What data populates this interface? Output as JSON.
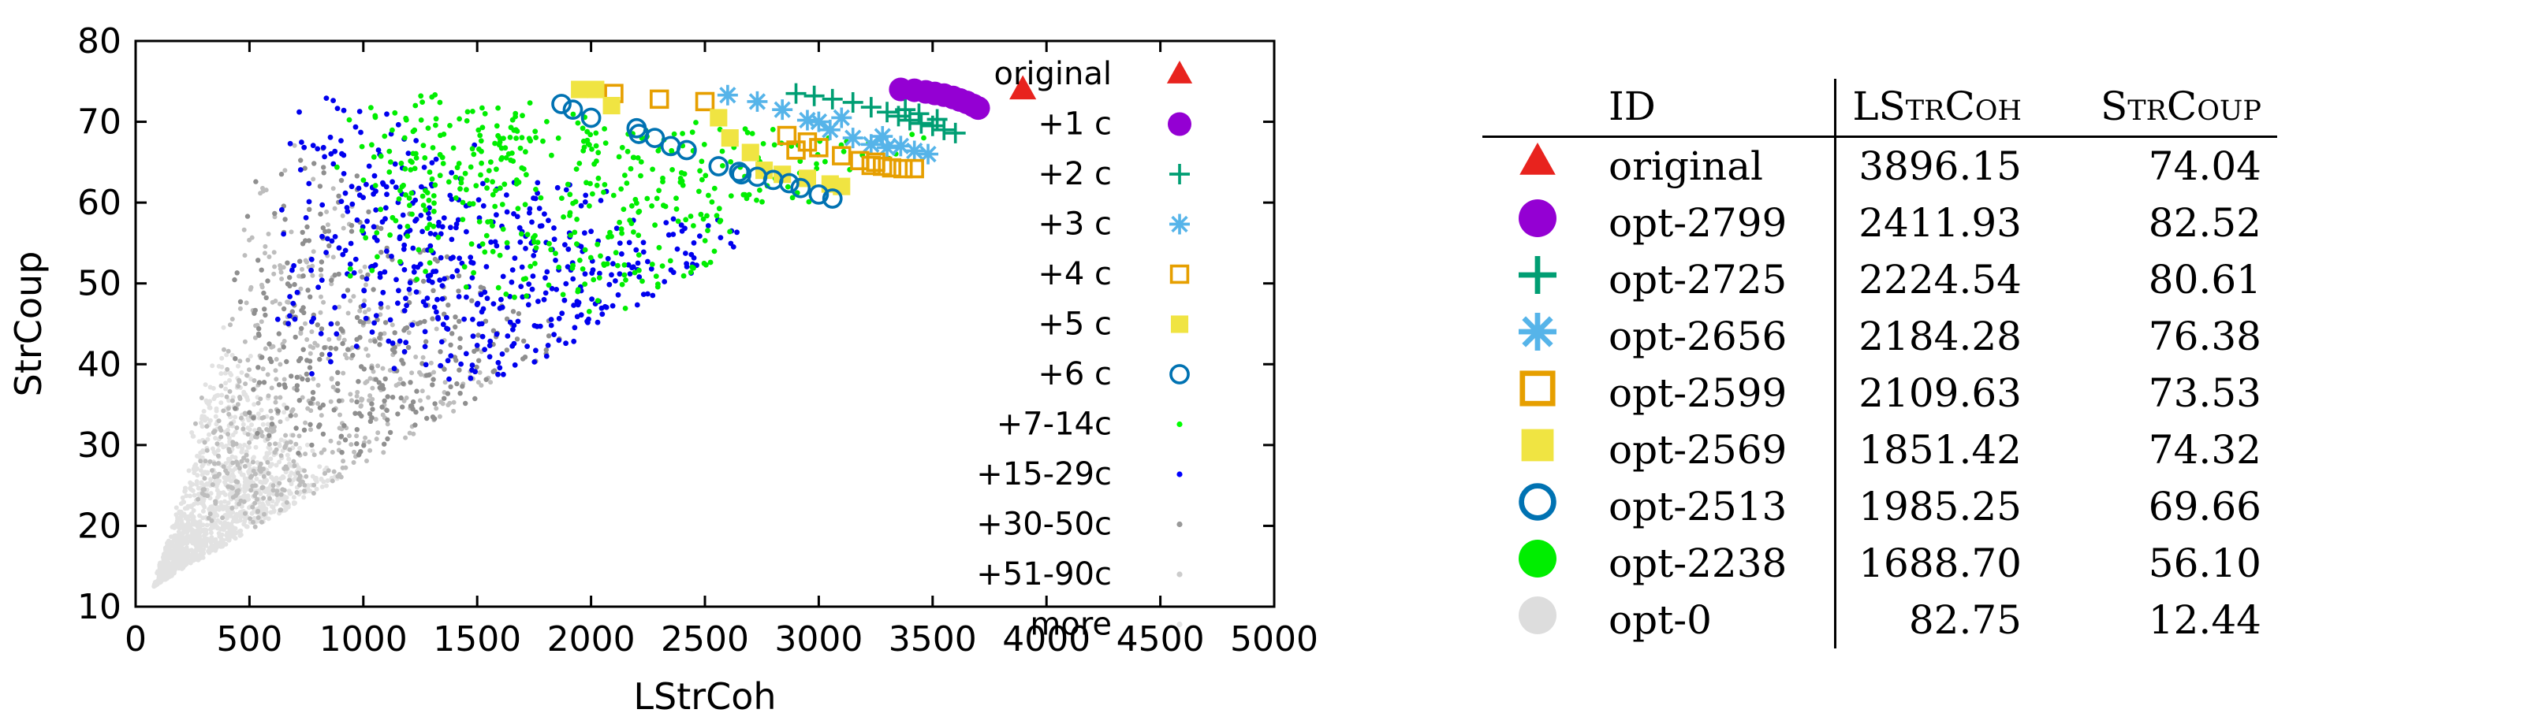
{
  "chart_data": {
    "type": "scatter",
    "xlabel": "LStrCoh",
    "ylabel": "StrCoup",
    "xlim": [
      0,
      5000
    ],
    "ylim": [
      10,
      80
    ],
    "xticks": [
      "0",
      "500",
      "1000",
      "1500",
      "2000",
      "2500",
      "3000",
      "3500",
      "4000",
      "4500",
      "5000"
    ],
    "yticks": [
      "10",
      "20",
      "30",
      "40",
      "50",
      "60",
      "70",
      "80"
    ],
    "grid": false,
    "legend_position": "top-right inside",
    "series": [
      {
        "name": "original",
        "marker": "triangle",
        "color": "#e8231e",
        "points": [
          [
            3896,
            74.0
          ]
        ]
      },
      {
        "name": "+1 c",
        "marker": "circle-filled",
        "color": "#9400d3",
        "points": [
          [
            3360,
            74.0
          ],
          [
            3420,
            73.9
          ],
          [
            3470,
            73.7
          ],
          [
            3510,
            73.5
          ],
          [
            3550,
            73.3
          ],
          [
            3590,
            73.0
          ],
          [
            3620,
            72.7
          ],
          [
            3650,
            72.4
          ],
          [
            3680,
            72.0
          ],
          [
            3700,
            71.7
          ]
        ]
      },
      {
        "name": "+2 c",
        "marker": "plus",
        "color": "#009e73",
        "points": [
          [
            2900,
            73.5
          ],
          [
            2980,
            73.2
          ],
          [
            3060,
            72.8
          ],
          [
            3150,
            72.4
          ],
          [
            3230,
            71.8
          ],
          [
            3300,
            71.2
          ],
          [
            3350,
            70.7
          ],
          [
            3400,
            70.2
          ],
          [
            3450,
            69.8
          ],
          [
            3500,
            69.5
          ],
          [
            3550,
            69.0
          ],
          [
            3600,
            68.6
          ],
          [
            3380,
            71.5
          ],
          [
            3440,
            71.0
          ],
          [
            3520,
            70.3
          ]
        ]
      },
      {
        "name": "+3 c",
        "marker": "asterisk",
        "color": "#56b4e9",
        "points": [
          [
            2600,
            73.3
          ],
          [
            2730,
            72.5
          ],
          [
            2840,
            71.5
          ],
          [
            2950,
            70.2
          ],
          [
            3050,
            69.0
          ],
          [
            3150,
            68.0
          ],
          [
            3230,
            67.2
          ],
          [
            3300,
            66.8
          ],
          [
            3360,
            67.0
          ],
          [
            3420,
            66.4
          ],
          [
            3480,
            66.0
          ],
          [
            3100,
            70.5
          ],
          [
            3000,
            70.0
          ],
          [
            3280,
            68.2
          ]
        ]
      },
      {
        "name": "+4 c",
        "marker": "square-open",
        "color": "#e69f00",
        "points": [
          [
            2100,
            73.5
          ],
          [
            2300,
            72.8
          ],
          [
            2500,
            72.5
          ],
          [
            2860,
            68.3
          ],
          [
            2950,
            67.5
          ],
          [
            3000,
            66.8
          ],
          [
            3100,
            65.8
          ],
          [
            3180,
            65.2
          ],
          [
            3230,
            64.6
          ],
          [
            3280,
            64.5
          ],
          [
            3320,
            64.3
          ],
          [
            3370,
            64.2
          ],
          [
            3420,
            64.2
          ],
          [
            2900,
            66.5
          ],
          [
            3250,
            65.0
          ]
        ]
      },
      {
        "name": "+5 c",
        "marker": "square-filled",
        "color": "#f0e442",
        "points": [
          [
            1950,
            74.0
          ],
          [
            2020,
            74.0
          ],
          [
            2090,
            72.0
          ],
          [
            2560,
            70.5
          ],
          [
            2610,
            68.0
          ],
          [
            2760,
            64.0
          ],
          [
            2840,
            63.5
          ],
          [
            2950,
            63.0
          ],
          [
            3050,
            62.3
          ],
          [
            3100,
            62.0
          ],
          [
            2700,
            66.2
          ]
        ]
      },
      {
        "name": "+6 c",
        "marker": "circle-open",
        "color": "#0072b2",
        "points": [
          [
            1870,
            72.2
          ],
          [
            1920,
            71.5
          ],
          [
            2000,
            70.5
          ],
          [
            2200,
            69.2
          ],
          [
            2280,
            68.0
          ],
          [
            2350,
            67.0
          ],
          [
            2420,
            66.5
          ],
          [
            2560,
            64.5
          ],
          [
            2660,
            63.5
          ],
          [
            2730,
            63.2
          ],
          [
            2800,
            62.8
          ],
          [
            2870,
            62.4
          ],
          [
            2920,
            61.8
          ],
          [
            3000,
            61.0
          ],
          [
            3060,
            60.5
          ],
          [
            2210,
            68.5
          ],
          [
            2650,
            63.8
          ]
        ]
      },
      {
        "name": "+7-14c",
        "marker": "dot",
        "color": "#00ff00",
        "points": []
      },
      {
        "name": "+15-29c",
        "marker": "dot",
        "color": "#0000ff",
        "points": []
      },
      {
        "name": "+30-50c",
        "marker": "dot",
        "color": "#999999",
        "points": []
      },
      {
        "name": "+51-90c",
        "marker": "dot",
        "color": "#cccccc",
        "points": []
      },
      {
        "name": "more",
        "marker": "dot",
        "color": "#e5e5e5",
        "points": []
      }
    ]
  },
  "table": {
    "headers": [
      "ID",
      "LStrCoh",
      "StrCoup"
    ],
    "rows": [
      {
        "symbol": "triangle",
        "color": "#e8231e",
        "id": "original",
        "lstrcoh": "3896.15",
        "strcoup": "74.04"
      },
      {
        "symbol": "circle-filled",
        "color": "#9400d3",
        "id": "opt-2799",
        "lstrcoh": "2411.93",
        "strcoup": "82.52"
      },
      {
        "symbol": "plus",
        "color": "#009e73",
        "id": "opt-2725",
        "lstrcoh": "2224.54",
        "strcoup": "80.61"
      },
      {
        "symbol": "asterisk",
        "color": "#56b4e9",
        "id": "opt-2656",
        "lstrcoh": "2184.28",
        "strcoup": "76.38"
      },
      {
        "symbol": "square-open",
        "color": "#e69f00",
        "id": "opt-2599",
        "lstrcoh": "2109.63",
        "strcoup": "73.53"
      },
      {
        "symbol": "square-filled",
        "color": "#f0e442",
        "id": "opt-2569",
        "lstrcoh": "1851.42",
        "strcoup": "74.32"
      },
      {
        "symbol": "circle-open",
        "color": "#0072b2",
        "id": "opt-2513",
        "lstrcoh": "1985.25",
        "strcoup": "69.66"
      },
      {
        "symbol": "circle-filled",
        "color": "#00ee00",
        "id": "opt-2238",
        "lstrcoh": "1688.70",
        "strcoup": "56.10"
      },
      {
        "symbol": "circle-filled",
        "color": "#dddddd",
        "id": "opt-0",
        "lstrcoh": "82.75",
        "strcoup": "12.44"
      }
    ]
  }
}
